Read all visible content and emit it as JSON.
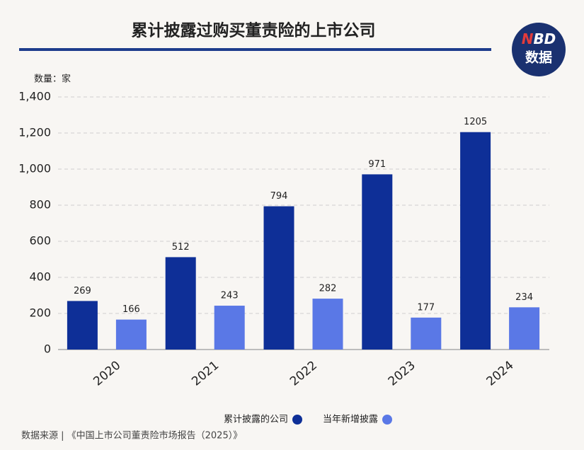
{
  "logo": [
    "N",
    "BD",
    "数据"
  ],
  "source": "数据来源 | 《中国上市公司董责险市场报告（2025）》",
  "chart_data": {
    "type": "bar",
    "title": "累计披露过购买董责险的上市公司",
    "y_label": "数量：家",
    "categories": [
      "2020",
      "2021",
      "2022",
      "2023",
      "2024"
    ],
    "series": [
      {
        "name": "累计披露的公司",
        "color": "#0e2f97",
        "values": [
          269,
          512,
          794,
          971,
          1205
        ]
      },
      {
        "name": "当年新增披露",
        "color": "#5a78e6",
        "values": [
          166,
          243,
          282,
          177,
          234
        ]
      }
    ],
    "ylim": [
      0,
      1400
    ],
    "yticks": [
      0,
      200,
      400,
      600,
      800,
      {
        "value": 1000,
        "label": "1,000"
      },
      {
        "value": 1200,
        "label": "1,200"
      },
      {
        "value": 1400,
        "label": "1,400"
      }
    ],
    "grid": true,
    "legend": "bottom"
  }
}
